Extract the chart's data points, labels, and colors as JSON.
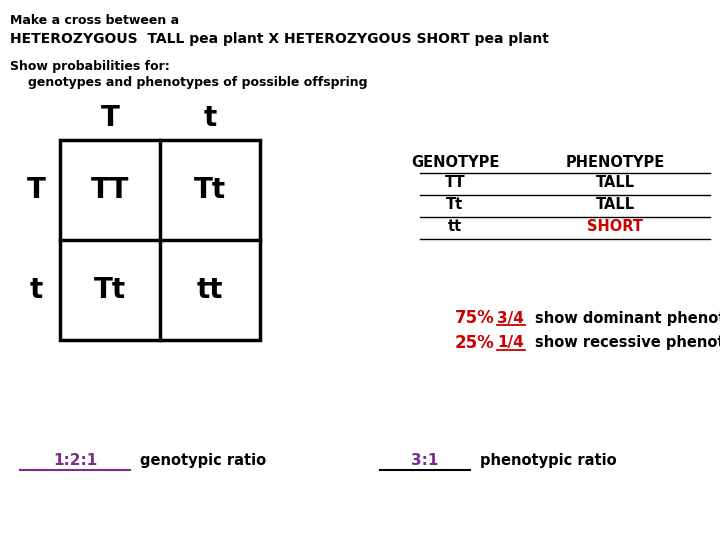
{
  "title_line1": "Make a cross between a",
  "title_line2": "HETEROZYGOUS  TALL pea plant X HETEROZYGOUS SHORT pea plant",
  "subtitle_line1": "Show probabilities for:",
  "subtitle_line2": "genotypes and phenotypes of possible offspring",
  "punnett": {
    "col_labels": [
      "T",
      "t"
    ],
    "row_labels": [
      "T",
      "t"
    ],
    "cells": [
      [
        "TT",
        "Tt"
      ],
      [
        "Tt",
        "tt"
      ]
    ]
  },
  "genotype_header": "GENOTYPE",
  "genotype_rows": [
    "TT",
    "Tt",
    "tt"
  ],
  "phenotype_header": "PHENOTYPE",
  "phenotype_rows": [
    "TALL",
    "TALL",
    "SHORT"
  ],
  "phenotype_colors": [
    "#000000",
    "#000000",
    "#cc0000"
  ],
  "percent_75": "75%",
  "fraction_75": "3/4",
  "percent_25": "25%",
  "fraction_25": "1/4",
  "dominant_text": "show dominant phenotype",
  "recessive_text": "show recessive phenotype",
  "genotypic_ratio_label": "1:2:1",
  "genotypic_ratio_text": "genotypic ratio",
  "phenotypic_ratio_label": "3:1",
  "phenotypic_ratio_text": "phenotypic ratio",
  "bg_color": "#ffffff",
  "text_color": "#000000",
  "purple_color": "#7B2D8B",
  "red_color": "#cc0000",
  "grid_color": "#000000"
}
